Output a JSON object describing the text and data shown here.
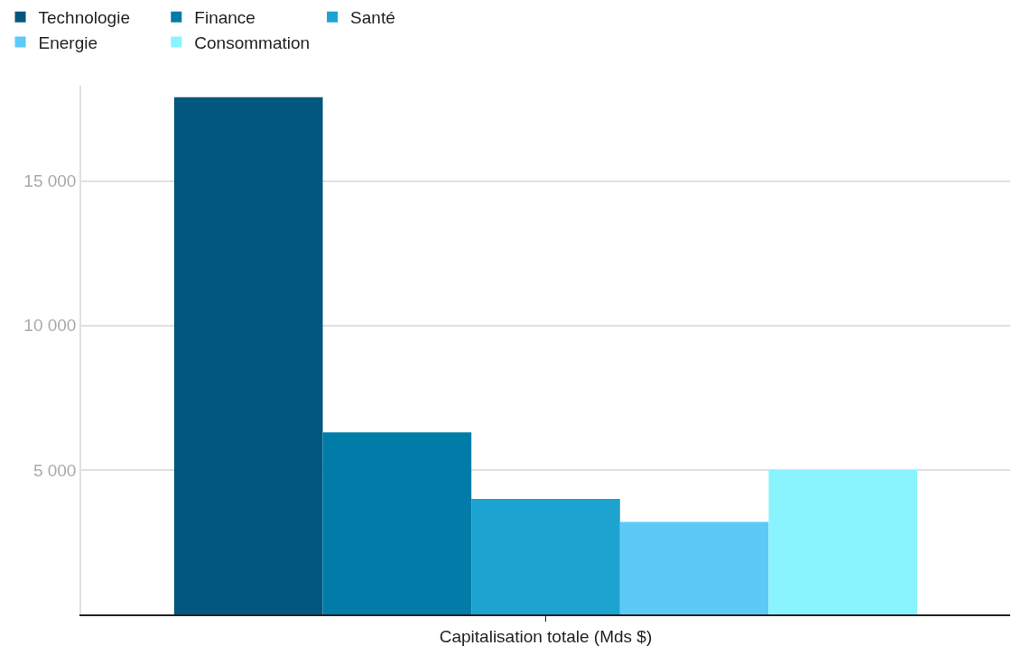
{
  "chart_data": {
    "type": "bar",
    "categories": [
      "Capitalisation totale (Mds $)"
    ],
    "series": [
      {
        "name": "Technologie",
        "color": "#01577d",
        "values": [
          17900
        ]
      },
      {
        "name": "Finance",
        "color": "#017ba7",
        "values": [
          6300
        ]
      },
      {
        "name": "Santé",
        "color": "#1ca3d0",
        "values": [
          4000
        ]
      },
      {
        "name": "Energie",
        "color": "#5bcaf5",
        "values": [
          3200
        ]
      },
      {
        "name": "Consommation",
        "color": "#8af4fe",
        "values": [
          5000
        ]
      }
    ],
    "ylim": [
      0,
      18300
    ],
    "yticks": [
      {
        "value": 5000,
        "label": "5 000"
      },
      {
        "value": 10000,
        "label": "10 000"
      },
      {
        "value": 15000,
        "label": "15 000"
      }
    ],
    "grid": "y",
    "legend": "top left"
  }
}
